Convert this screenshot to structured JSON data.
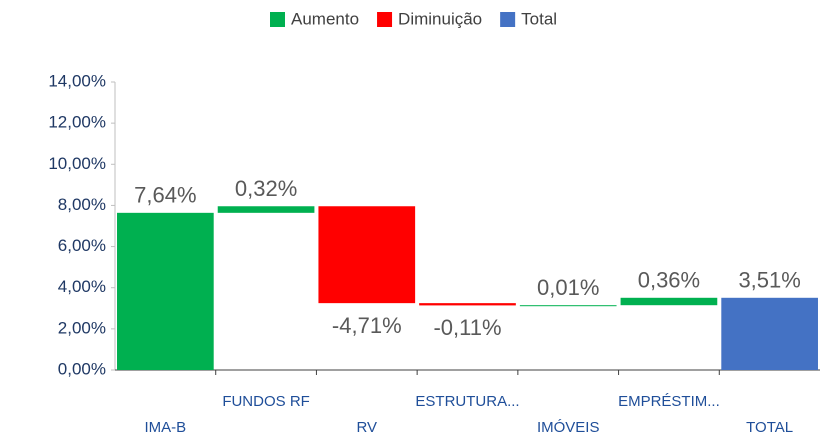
{
  "chart_data": {
    "type": "waterfall",
    "legend": [
      {
        "name": "Aumento",
        "color": "#00b050"
      },
      {
        "name": "Diminuição",
        "color": "#ff0000"
      },
      {
        "name": "Total",
        "color": "#4472c4"
      }
    ],
    "categories": [
      "IMA-B",
      "FUNDOS RF",
      "RV",
      "ESTRUTURA...",
      "IMÓVEIS",
      "EMPRÉSTIM...",
      "TOTAL"
    ],
    "values": [
      7.64,
      0.32,
      -4.71,
      -0.11,
      0.01,
      0.36,
      3.51
    ],
    "value_labels": [
      "7,64%",
      "0,32%",
      "-4,71%",
      "-0,11%",
      "0,01%",
      "0,36%",
      "3,51%"
    ],
    "ylim": [
      0,
      14
    ],
    "yticks": [
      {
        "value": 0,
        "label": "0,00%"
      },
      {
        "value": 2,
        "label": "2,00%"
      },
      {
        "value": 4,
        "label": "4,00%"
      },
      {
        "value": 6,
        "label": "6,00%"
      },
      {
        "value": 8,
        "label": "8,00%"
      },
      {
        "value": 10,
        "label": "10,00%"
      },
      {
        "value": 12,
        "label": "12,00%"
      },
      {
        "value": 14,
        "label": "14,00%"
      }
    ],
    "grid": false
  }
}
